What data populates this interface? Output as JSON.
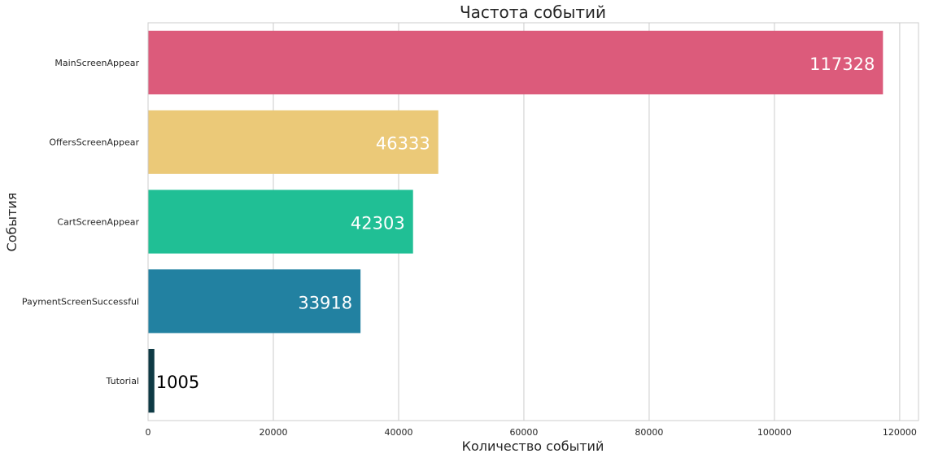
{
  "chart_data": {
    "type": "bar",
    "orientation": "horizontal",
    "title": "Частота событий",
    "xlabel": "Количество событий",
    "ylabel": "События",
    "categories": [
      "MainScreenAppear",
      "OffersScreenAppear",
      "CartScreenAppear",
      "PaymentScreenSuccessful",
      "Tutorial"
    ],
    "values": [
      117328,
      46333,
      42303,
      33918,
      1005
    ],
    "data_labels": [
      "117328",
      "46333",
      "42303",
      "33918",
      "1005"
    ],
    "colors": [
      "#dc5b7b",
      "#ebc978",
      "#20bf95",
      "#2281a1",
      "#0e3a44"
    ],
    "label_colors": [
      "#ffffff",
      "#ffffff",
      "#ffffff",
      "#ffffff",
      "#000000"
    ],
    "xlim": [
      0,
      123000
    ],
    "xticks": [
      0,
      20000,
      40000,
      60000,
      80000,
      100000,
      120000
    ],
    "xtick_labels": [
      "0",
      "20000",
      "40000",
      "60000",
      "80000",
      "100000",
      "120000"
    ],
    "grid": "vertical"
  }
}
